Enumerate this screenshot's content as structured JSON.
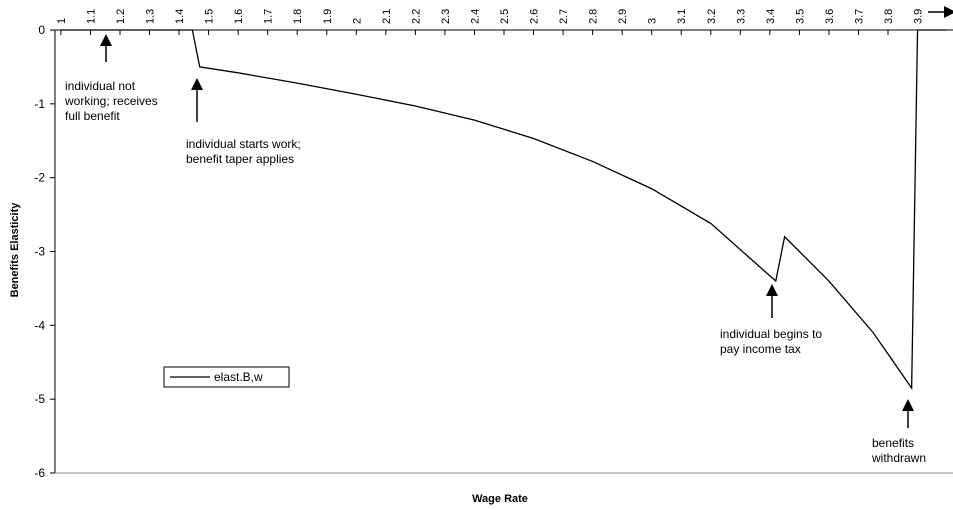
{
  "chart_data": {
    "type": "line",
    "x_label": "Wage Rate",
    "y_label": "Benefits Elasticity",
    "x": [
      1.0,
      1.445,
      1.47,
      1.6,
      1.8,
      2.0,
      2.2,
      2.4,
      2.6,
      2.8,
      3.0,
      3.2,
      3.42,
      3.45,
      3.6,
      3.75,
      3.88,
      3.9,
      4.0
    ],
    "series": [
      {
        "name": "elast.B,w",
        "color": "#000000",
        "values": [
          0,
          0,
          -0.5,
          -0.58,
          -0.72,
          -0.87,
          -1.03,
          -1.22,
          -1.47,
          -1.78,
          -2.15,
          -2.62,
          -3.4,
          -2.8,
          -3.4,
          -4.1,
          -4.85,
          0,
          0
        ]
      }
    ],
    "xlim": [
      0.98,
      4.02
    ],
    "xticks": [
      1,
      1.1,
      1.2,
      1.3,
      1.4,
      1.5,
      1.6,
      1.7,
      1.8,
      1.9,
      2,
      2.1,
      2.2,
      2.3,
      2.4,
      2.5,
      2.6,
      2.7,
      2.8,
      2.9,
      3,
      3.1,
      3.2,
      3.3,
      3.4,
      3.5,
      3.6,
      3.7,
      3.8,
      3.9
    ],
    "ylim": [
      -6,
      0
    ],
    "yticks": [
      0,
      -1,
      -2,
      -3,
      -4,
      -5,
      -6
    ],
    "grid": false,
    "annotations": [
      {
        "lines": [
          "individual not",
          "working; receives",
          "full benefit"
        ]
      },
      {
        "lines": [
          "individual starts work;",
          "benefit taper applies"
        ]
      },
      {
        "lines": [
          "individual begins to",
          "pay income tax"
        ]
      },
      {
        "lines": [
          "benefits",
          "withdrawn"
        ]
      }
    ]
  }
}
